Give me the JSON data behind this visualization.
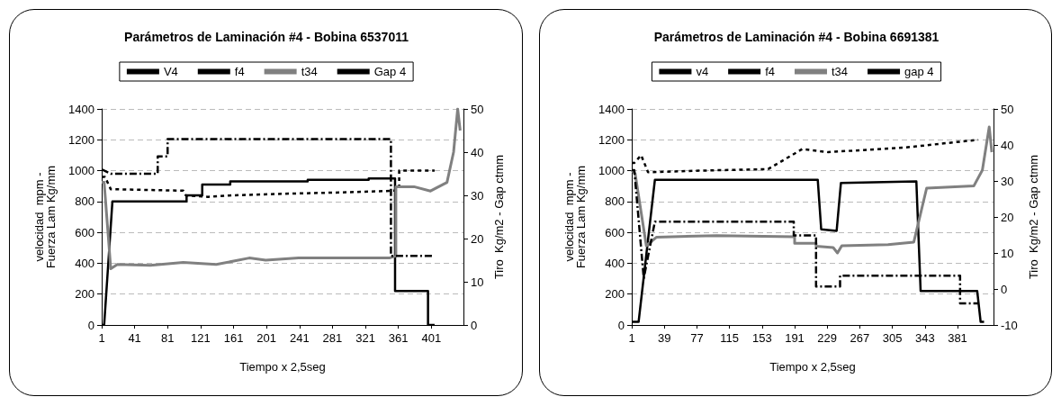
{
  "chart_data": [
    {
      "type": "line",
      "title": "Parámetros de Laminación #4 - Bobina 6537011",
      "xlabel": "Tiempo x 2,5seg",
      "ylabel": "velocidad  mpm -\nFuerza Lam Kg/mm",
      "y2label": "Tiro  Kg/m2 - Gap ctmm",
      "xlim": [
        1,
        440
      ],
      "xticks": [
        1,
        41,
        81,
        121,
        161,
        201,
        241,
        281,
        321,
        361,
        401
      ],
      "ylim": [
        0,
        1400
      ],
      "yticks": [
        0,
        200,
        400,
        600,
        800,
        1000,
        1200,
        1400
      ],
      "y2lim": [
        0,
        50
      ],
      "y2ticks": [
        0,
        10,
        20,
        30,
        40,
        50
      ],
      "grid": "y",
      "legend": "top",
      "marker": "none",
      "series": [
        {
          "name": "V4",
          "color": "#000000",
          "line_style": "solid",
          "x": [
            1,
            4,
            14,
            104,
            104,
            123,
            123,
            157,
            157,
            251,
            251,
            325,
            325,
            357,
            357,
            397,
            397,
            405
          ],
          "values": [
            0,
            0,
            800,
            800,
            840,
            840,
            910,
            910,
            930,
            930,
            940,
            940,
            950,
            950,
            220,
            220,
            0,
            0
          ]
        },
        {
          "name": "f4",
          "color": "#000000",
          "line_style": "dotted",
          "x": [
            1,
            5,
            12,
            100,
            103,
            130,
            160,
            220,
            300,
            355,
            362,
            362,
            405
          ],
          "values": [
            960,
            960,
            880,
            870,
            840,
            830,
            840,
            850,
            860,
            870,
            880,
            1000,
            1000
          ]
        },
        {
          "name": "t34",
          "color": "#808080",
          "line_style": "solid",
          "axis": "y2",
          "x": [
            1,
            4,
            12,
            20,
            60,
            100,
            140,
            180,
            200,
            240,
            350,
            358,
            358,
            380,
            400,
            420,
            428,
            433,
            436
          ],
          "values": [
            33,
            33,
            13,
            14,
            13.8,
            14.5,
            14,
            15.5,
            15,
            15.5,
            15.5,
            16,
            32,
            32,
            31,
            33,
            40,
            50,
            45
          ]
        },
        {
          "name": "Gap 4",
          "color": "#000000",
          "line_style": "dashed",
          "axis": "y2",
          "x": [
            1,
            12,
            69,
            69,
            81,
            81,
            352,
            352,
            404
          ],
          "values": [
            36,
            35,
            35,
            39,
            39,
            43,
            43,
            16,
            16
          ]
        }
      ]
    },
    {
      "type": "line",
      "title": "Parámetros de Laminación #4 - Bobina 6691381",
      "xlabel": "Tiempo x 2,5seg",
      "ylabel": "velocidad  mpm -\nFuerza Lam Kg/mm",
      "y2label": "Tiro  Kg/m2 - Gap ctmm",
      "xlim": [
        1,
        423
      ],
      "xticks": [
        1,
        39,
        77,
        115,
        153,
        191,
        229,
        267,
        305,
        343,
        381
      ],
      "ylim": [
        0,
        1400
      ],
      "yticks": [
        0,
        200,
        400,
        600,
        800,
        1000,
        1200,
        1400
      ],
      "y2lim": [
        -10,
        50
      ],
      "y2ticks": [
        -10,
        0,
        10,
        20,
        30,
        40,
        50
      ],
      "grid": "y",
      "legend": "top",
      "marker": "none",
      "series": [
        {
          "name": "v4",
          "color": "#000000",
          "line_style": "solid",
          "x": [
            1,
            9,
            28,
            218,
            222,
            240,
            245,
            333,
            338,
            404,
            408,
            412
          ],
          "values": [
            20,
            20,
            940,
            940,
            620,
            610,
            920,
            930,
            220,
            220,
            20,
            20
          ]
        },
        {
          "name": "f4",
          "color": "#000000",
          "line_style": "dotted",
          "x": [
            1,
            4,
            12,
            20,
            80,
            160,
            200,
            230,
            320,
            405
          ],
          "values": [
            1050,
            1050,
            1100,
            990,
            1000,
            1010,
            1140,
            1120,
            1150,
            1200
          ]
        },
        {
          "name": "t34",
          "color": "#808080",
          "line_style": "solid",
          "axis": "y2",
          "x": [
            1,
            5,
            18,
            30,
            100,
            191,
            191,
            216,
            216,
            236,
            241,
            246,
            300,
            330,
            345,
            400,
            410,
            418,
            421
          ],
          "values": [
            33,
            32,
            12,
            14.4,
            14.8,
            14.5,
            12.7,
            12.7,
            11.9,
            11.5,
            10,
            12,
            12.3,
            13,
            28,
            28.6,
            33,
            45,
            38
          ]
        },
        {
          "name": "gap 4",
          "color": "#000000",
          "line_style": "dashed",
          "axis": "y2",
          "x": [
            1,
            4,
            15,
            28,
            190,
            190,
            216,
            216,
            244,
            244,
            384,
            384,
            405
          ],
          "values": [
            33,
            33,
            3,
            18.7,
            18.7,
            14.9,
            14.9,
            0.7,
            0.7,
            3.7,
            3.7,
            -4,
            -4
          ]
        }
      ]
    }
  ]
}
